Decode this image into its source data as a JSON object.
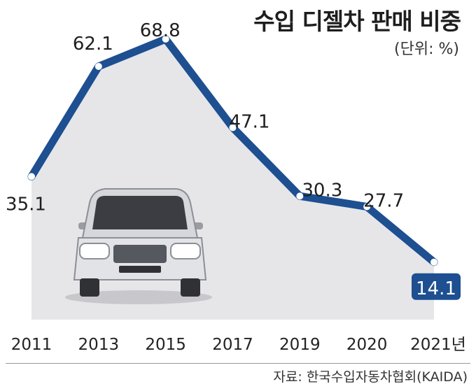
{
  "title": "수입 디젤차 판매 비중",
  "unit": "(단위: %)",
  "source": "자료: 한국수입자동차협회(KAIDA)",
  "colors": {
    "line": "#1d4f91",
    "highlight": "#1d4f91",
    "panel": "#e6e6e9"
  },
  "chart_data": {
    "type": "line",
    "title": "수입 디젤차 판매 비중",
    "ylabel": "%",
    "categories": [
      "2011",
      "2013",
      "2015",
      "2017",
      "2019",
      "2020",
      "2021년"
    ],
    "series": [
      {
        "values": [
          35.1,
          62.1,
          68.8,
          47.1,
          30.3,
          27.7,
          14.1
        ]
      }
    ],
    "data_labels": [
      "35.1",
      "62.1",
      "68.8",
      "47.1",
      "30.3",
      "27.7",
      "14.1"
    ],
    "highlight_index": 6,
    "grid": false
  }
}
